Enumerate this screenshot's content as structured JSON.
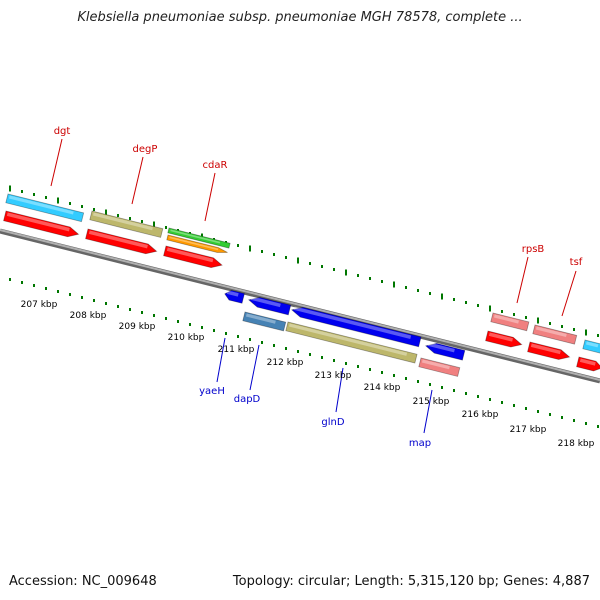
{
  "title": "Klebsiella pneumoniae subsp. pneumoniae MGH 78578, complete ...",
  "footer": {
    "accession": "Accession: NC_009648",
    "summary": "Topology: circular; Length: 5,315,120 bp; Genes: 4,887"
  },
  "scale_labels": [
    "207 kbp",
    "208 kbp",
    "209 kbp",
    "210 kbp",
    "211 kbp",
    "212 kbp",
    "213 kbp",
    "214 kbp",
    "215 kbp",
    "216 kbp",
    "217 kbp",
    "218 kbp"
  ],
  "colors": {
    "forward_label": "#cc0000",
    "reverse_label": "#0000cc",
    "backbone": "#808080",
    "ticks": "#007700",
    "cds": "#ff0000",
    "cyan": "#33ccff",
    "khaki": "#bdb76b",
    "green": "#33cc33",
    "orange": "#ff9900",
    "blue": "#0000ee",
    "steelblue": "#4682b4",
    "pink": "#f08080"
  },
  "gene_labels": {
    "forward": [
      "dgt",
      "degP",
      "cdaR",
      "rpsB",
      "tsf"
    ],
    "reverse": [
      "yaeH",
      "dapD",
      "glnD",
      "map"
    ]
  }
}
